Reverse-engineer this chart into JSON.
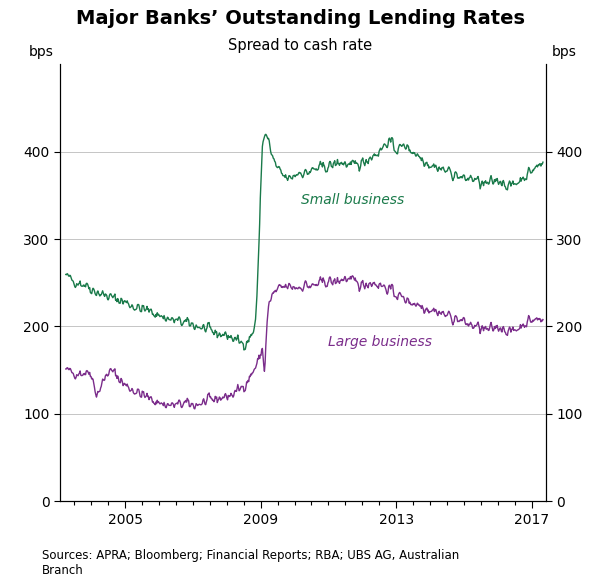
{
  "title": "Major Banks’ Outstanding Lending Rates",
  "subtitle": "Spread to cash rate",
  "ylabel_left": "bps",
  "ylabel_right": "bps",
  "source": "Sources: APRA; Bloomberg; Financial Reports; RBA; UBS AG, Australian\nBranch",
  "xlim_start": 2003.08,
  "xlim_end": 2017.42,
  "ylim": [
    0,
    500
  ],
  "yticks": [
    0,
    100,
    200,
    300,
    400
  ],
  "small_business_color": "#1a7a4a",
  "large_business_color": "#7b2d8b",
  "small_business_label": "Small business",
  "large_business_label": "Large business",
  "xticks": [
    2005,
    2009,
    2013,
    2017
  ],
  "background_color": "#ffffff",
  "grid_color": "#bbbbbb",
  "linewidth": 1.0
}
